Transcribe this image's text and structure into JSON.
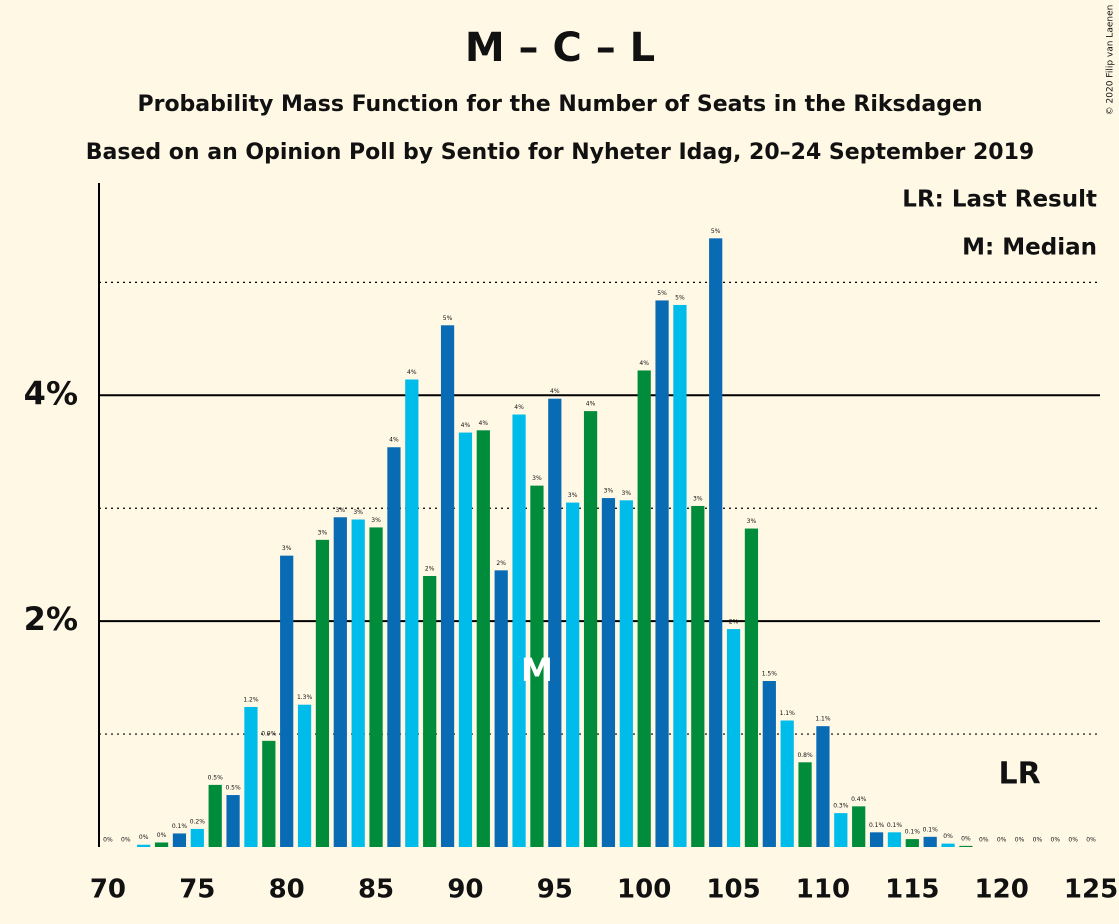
{
  "chart_data": {
    "type": "bar",
    "title": "M – C – L",
    "subtitle": "Probability Mass Function for the Number of Seats in the Riksdagen",
    "subtitle2": "Based on an Opinion Poll by Sentio for Nyheter Idag, 20–24 September 2019",
    "copyright": "© 2020 Filip van Laenen",
    "legend_texts": [
      "LR: Last Result",
      "M: Median"
    ],
    "annotations": [
      {
        "text": "M",
        "x": 94
      },
      {
        "text": "LR",
        "x": 121
      }
    ],
    "x": [
      70,
      71,
      72,
      73,
      74,
      75,
      76,
      77,
      78,
      79,
      80,
      81,
      82,
      83,
      84,
      85,
      86,
      87,
      88,
      89,
      90,
      91,
      92,
      93,
      94,
      95,
      96,
      97,
      98,
      99,
      100,
      101,
      102,
      103,
      104,
      105,
      106,
      107,
      108,
      109,
      110,
      111,
      112,
      113,
      114,
      115,
      116,
      117,
      118,
      119,
      120,
      121,
      122,
      123,
      124,
      125
    ],
    "values": [
      0,
      0,
      0.02,
      0.04,
      0.12,
      0.16,
      0.55,
      0.46,
      1.24,
      0.94,
      2.58,
      1.26,
      2.72,
      2.92,
      2.9,
      2.83,
      3.54,
      4.14,
      2.4,
      4.62,
      3.67,
      3.69,
      2.45,
      3.83,
      3.2,
      3.97,
      3.05,
      3.86,
      3.09,
      3.07,
      4.22,
      4.84,
      4.8,
      3.02,
      5.39,
      1.93,
      2.82,
      1.47,
      1.12,
      0.75,
      1.07,
      0.3,
      0.36,
      0.13,
      0.13,
      0.07,
      0.09,
      0.03,
      0.01,
      0,
      0,
      0,
      0,
      0,
      0,
      0
    ],
    "value_labels": [
      "0%",
      "0%",
      "0%",
      "0%",
      "0.1%",
      "0.2%",
      "0.5%",
      "0.5%",
      "1.2%",
      "0.9%",
      "3%",
      "1.3%",
      "3%",
      "3%",
      "3%",
      "3%",
      "4%",
      "4%",
      "2%",
      "5%",
      "4%",
      "4%",
      "2%",
      "4%",
      "3%",
      "4%",
      "3%",
      "4%",
      "3%",
      "3%",
      "4%",
      "5%",
      "5%",
      "3%",
      "5%",
      "2%",
      "3%",
      "1.5%",
      "1.1%",
      "0.8%",
      "1.1%",
      "0.3%",
      "0.4%",
      "0.1%",
      "0.1%",
      "0.1%",
      "0.1%",
      "0%",
      "0%",
      "0%",
      "0%",
      "0%",
      "0%",
      "0%",
      "0%",
      "0%"
    ],
    "bar_colors": [
      "#008C3A",
      "#0A6BB5",
      "#00BCEB"
    ],
    "xlim": [
      69.5,
      125.5
    ],
    "xticks": [
      70,
      75,
      80,
      85,
      90,
      95,
      100,
      105,
      110,
      115,
      120,
      125
    ],
    "ylim": [
      0,
      5.88
    ],
    "yticks": [
      {
        "value": 2,
        "label": "2%"
      },
      {
        "value": 4,
        "label": "4%"
      }
    ],
    "minor_grid": [
      1,
      3,
      5
    ],
    "grid": true
  }
}
